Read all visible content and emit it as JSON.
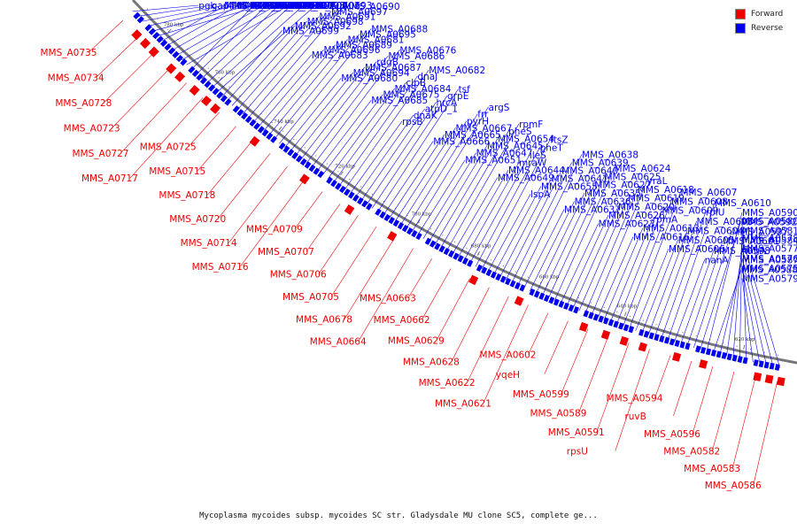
{
  "legend": {
    "forward": "Forward",
    "reverse": "Reverse"
  },
  "colors": {
    "forward": "#ee0000",
    "reverse": "#0000ee",
    "backbone": "#777777"
  },
  "caption": "Mycoplasma mycoides subsp. mycoides SC str. Gladysdale MU clone SC5, complete ge...",
  "ticks": [
    "780 kbp",
    "760 kbp",
    "740 kbp",
    "720 kbp",
    "700 kbp",
    "680 kbp",
    "660 kbp",
    "640 kbp",
    "620 kbp"
  ],
  "reverse_genes": [
    "pgk",
    "gap",
    "MMS_A0739",
    "MMS_A0736",
    "MMS_A0732",
    "MMS_A0733",
    "MMS_A0724",
    "MMS_A0713",
    "MMS_A0712",
    "MMS_A0711",
    "MMS_A0710",
    "MMS_A0708",
    "MMS_A0704",
    "MMS_A0703",
    "MMS_A0701",
    "MMS_A0700",
    "MMS_A0702",
    "MMS_A0693",
    "MMS_A0699",
    "MMS_A0692",
    "MMS_A0698",
    "MMS_A0691",
    "MMS_A0697",
    "MMS_A0690",
    "MMS_A0683",
    "MMS_A0696",
    "MMS_A0689",
    "MMS_A0681",
    "MMS_A0695",
    "MMS_A0688",
    "MMS_A0680",
    "MMS_A0694",
    "MMS_A0687",
    "rdgB",
    "MMS_A0686",
    "MMS_A0676",
    "MMS_A0685",
    "MMS_A0675",
    "MMS_A0684",
    "clpB",
    "dnaJ",
    "MMS_A0682",
    "rpsB",
    "dnaK",
    "atpD_1",
    "hrcA",
    "grpE",
    "tsf",
    "MMS_A0666",
    "MMS_A0665",
    "MMS_A0667",
    "pyrH",
    "frr",
    "argS",
    "MMS_A0651",
    "MMS_A0647",
    "MMS_A0645",
    "MMS_A0654",
    "pheS",
    "rpmF",
    "MMS_A0649",
    "MMS_A0644",
    "mraW",
    "ileS",
    "pheT",
    "ftsZ",
    "lspA",
    "MMS_A0655",
    "MMS_A0641",
    "MMS_A0640",
    "MMS_A0639",
    "MMS_A0638",
    "MMS_A0637",
    "MMS_A0636",
    "MMS_A0635",
    "MMS_A0627",
    "MMS_A0625",
    "MMS_A0624",
    "MMS_A0623",
    "MMS_A0626",
    "MMS_A0620",
    "MMS_A0619",
    "MMS_A0618",
    "yraL",
    "MMS_A0616",
    "MMS_A0613",
    "rpmA",
    "MMS_A0609",
    "MMS_A0608",
    "MMS_A0607",
    "MMS_A0606",
    "MMS_A0605",
    "MMS_A0604",
    "MMS_A0603",
    "rplU",
    "MMS_A0610",
    "nanA",
    "MMS_A0598",
    "MMS_A0601",
    "MMS_A0597",
    "MMS_A0592",
    "MMS_A0590",
    "MMS_A0588",
    "MMS_A0587",
    "nagA",
    "MMS_A0584",
    "MMS_A0581",
    "MMS_A0580",
    "MMS_A0579",
    "MMS_A0575",
    "MMS_A0576",
    "MMS_A0577",
    "MMS_A0578"
  ],
  "forward_genes": [
    "MMS_A0735",
    "MMS_A0734",
    "MMS_A0728",
    "MMS_A0723",
    "MMS_A0727",
    "MMS_A0717",
    "MMS_A0725",
    "MMS_A0715",
    "MMS_A0718",
    "MMS_A0720",
    "MMS_A0714",
    "MMS_A0716",
    "MMS_A0709",
    "MMS_A0707",
    "MMS_A0706",
    "MMS_A0705",
    "MMS_A0678",
    "MMS_A0664",
    "MMS_A0663",
    "MMS_A0662",
    "MMS_A0629",
    "MMS_A0628",
    "MMS_A0622",
    "MMS_A0621",
    "MMS_A0602",
    "yqeH",
    "MMS_A0599",
    "MMS_A0589",
    "MMS_A0591",
    "rpsU",
    "MMS_A0594",
    "ruvB",
    "MMS_A0596",
    "MMS_A0582",
    "MMS_A0583",
    "MMS_A0586"
  ]
}
